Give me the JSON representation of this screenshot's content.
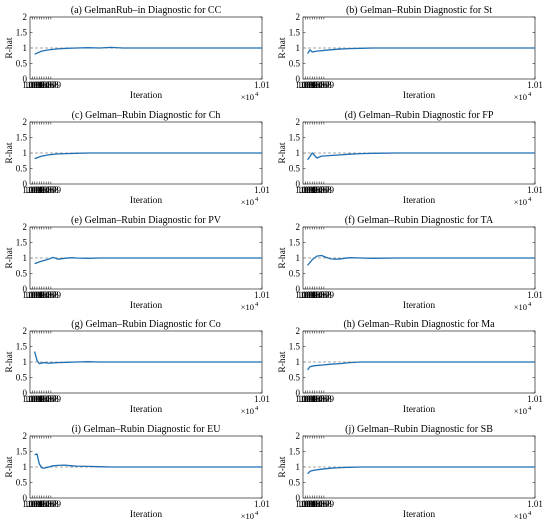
{
  "chart_data": {
    "type": "line",
    "xlabel": "Iteration",
    "ylabel": "R-hat",
    "x_multiplier": "×10",
    "x_multiplier_exp": "4",
    "xlim": [
      10000,
      10100
    ],
    "ylim": [
      0,
      2
    ],
    "x_ticks": [
      10001,
      10002,
      10003,
      10004,
      10005,
      10006,
      10007,
      10008,
      10009,
      10100
    ],
    "x_tick_labels": [
      "1.001",
      "1.002",
      "1.003",
      "1.004",
      "1.005",
      "1.006",
      "1.007",
      "1.008",
      "1.009",
      "1.01"
    ],
    "y_ticks": [
      0,
      0.5,
      1,
      1.5,
      2
    ],
    "y_tick_labels": [
      "0",
      "0.5",
      "1",
      "1.5",
      "2"
    ],
    "reference_line": 1,
    "line_color": "#1f6fb2",
    "ref_color": "#8a8a8a",
    "panels": [
      {
        "title": "(a) GelmanRub–in Diagnostic for CC",
        "x": [
          10002,
          10005,
          10008,
          10012,
          10016,
          10020,
          10025,
          10030,
          10035,
          10040,
          10050,
          10060,
          10070,
          10080,
          10090,
          10100
        ],
        "y": [
          0.8,
          0.9,
          0.94,
          0.97,
          0.99,
          1.0,
          1.01,
          1.0,
          1.02,
          1.0,
          1.0,
          1.0,
          1.0,
          1.0,
          1.0,
          1.0
        ]
      },
      {
        "title": "(b) Gelman–Rubin Diagnostic for St",
        "x": [
          10002,
          10003,
          10004,
          10006,
          10010,
          10015,
          10020,
          10025,
          10030,
          10040,
          10050,
          10060,
          10070,
          10080,
          10090,
          10100
        ],
        "y": [
          0.82,
          0.94,
          0.87,
          0.9,
          0.93,
          0.96,
          0.98,
          0.99,
          1.0,
          1.0,
          1.0,
          1.0,
          1.0,
          1.0,
          1.0,
          1.0
        ]
      },
      {
        "title": "(c) Gelman–Rubin Diagnostic for Ch",
        "x": [
          10002,
          10005,
          10008,
          10012,
          10016,
          10020,
          10025,
          10030,
          10040,
          10050,
          10060,
          10070,
          10080,
          10090,
          10100
        ],
        "y": [
          0.82,
          0.9,
          0.94,
          0.97,
          0.98,
          0.99,
          1.0,
          1.0,
          1.0,
          1.0,
          1.0,
          1.0,
          1.0,
          1.0,
          1.0
        ]
      },
      {
        "title": "(d) Gelman–Rubin Diagnostic for FP",
        "x": [
          10002,
          10004,
          10006,
          10008,
          10012,
          10016,
          10020,
          10025,
          10030,
          10040,
          10050,
          10060,
          10070,
          10080,
          10090,
          10100
        ],
        "y": [
          0.78,
          1.0,
          0.84,
          0.9,
          0.92,
          0.94,
          0.96,
          0.98,
          0.99,
          1.0,
          1.0,
          1.0,
          1.0,
          1.0,
          1.0,
          1.0
        ]
      },
      {
        "title": "(e) Gelman–Rubin Diagnostic for PV",
        "x": [
          10002,
          10005,
          10008,
          10010,
          10012,
          10015,
          10018,
          10020,
          10025,
          10030,
          10040,
          10050,
          10060,
          10070,
          10080,
          10090,
          10100
        ],
        "y": [
          0.82,
          0.9,
          0.96,
          1.02,
          0.96,
          0.99,
          1.01,
          1.0,
          0.99,
          1.0,
          1.0,
          1.0,
          1.0,
          1.0,
          1.0,
          1.0,
          1.0
        ]
      },
      {
        "title": "(f) Gelman–Rubin Diagnostic for TA",
        "x": [
          10002,
          10004,
          10006,
          10008,
          10010,
          10012,
          10015,
          10018,
          10020,
          10025,
          10030,
          10040,
          10050,
          10060,
          10070,
          10080,
          10090,
          10100
        ],
        "y": [
          0.76,
          0.95,
          1.06,
          1.08,
          1.02,
          0.97,
          0.96,
          0.99,
          1.01,
          1.0,
          0.99,
          1.0,
          1.0,
          1.0,
          1.0,
          1.0,
          1.0,
          1.0
        ]
      },
      {
        "title": "(g) Gelman–Rubin Diagnostic for Co",
        "x": [
          10002,
          10003,
          10004,
          10006,
          10008,
          10012,
          10016,
          10020,
          10025,
          10030,
          10040,
          10050,
          10060,
          10070,
          10080,
          10090,
          10100
        ],
        "y": [
          1.34,
          1.05,
          0.95,
          0.98,
          0.96,
          0.98,
          0.99,
          1.0,
          1.01,
          1.0,
          1.0,
          1.0,
          1.0,
          1.0,
          1.0,
          1.0,
          1.0
        ]
      },
      {
        "title": "(h) Gelman–Rubin Diagnostic for Ma",
        "x": [
          10002,
          10003,
          10005,
          10008,
          10012,
          10016,
          10020,
          10025,
          10030,
          10040,
          10050,
          10060,
          10070,
          10080,
          10090,
          10100
        ],
        "y": [
          0.75,
          0.85,
          0.88,
          0.9,
          0.93,
          0.95,
          0.98,
          1.0,
          1.0,
          1.0,
          1.0,
          1.0,
          1.0,
          1.0,
          1.0,
          1.0
        ]
      },
      {
        "title": "(i) Gelman–Rubin Diagnostic for EU",
        "x": [
          10002,
          10003,
          10004,
          10005,
          10006,
          10008,
          10010,
          10012,
          10015,
          10018,
          10020,
          10025,
          10030,
          10035,
          10040,
          10050,
          10060,
          10070,
          10080,
          10090,
          10100
        ],
        "y": [
          1.4,
          1.42,
          1.1,
          0.98,
          0.96,
          1.0,
          1.04,
          1.05,
          1.06,
          1.04,
          1.03,
          1.02,
          1.01,
          1.0,
          1.0,
          1.0,
          1.0,
          1.0,
          1.0,
          1.0,
          1.0
        ]
      },
      {
        "title": "(j) Gelman–Rubin Diagnostic for SB",
        "x": [
          10002,
          10003,
          10005,
          10008,
          10012,
          10016,
          10020,
          10025,
          10030,
          10040,
          10050,
          10060,
          10070,
          10080,
          10090,
          10100
        ],
        "y": [
          0.78,
          0.86,
          0.9,
          0.93,
          0.96,
          0.98,
          0.99,
          1.0,
          1.0,
          1.0,
          1.0,
          1.0,
          1.0,
          1.0,
          1.0,
          1.0
        ]
      }
    ]
  }
}
